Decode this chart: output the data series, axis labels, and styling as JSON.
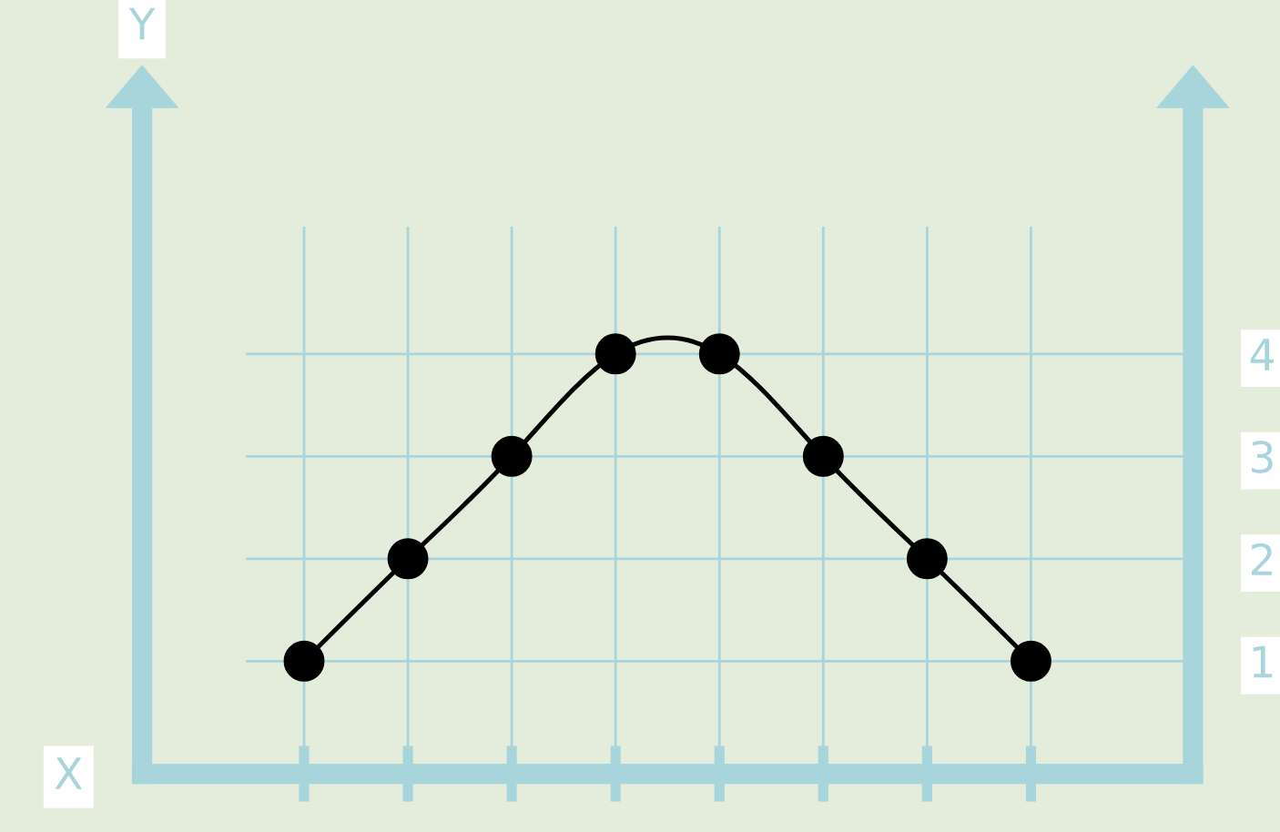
{
  "chart_data": {
    "type": "scatter",
    "xlabel": "X",
    "ylabel": "Y",
    "categories": [
      null,
      null,
      null,
      null,
      null,
      null,
      null,
      null
    ],
    "series": [
      {
        "type": "line",
        "color": "#000000",
        "line_style": "solid",
        "values": [
          1,
          2,
          3,
          4,
          4,
          3,
          2,
          1
        ]
      },
      {
        "color": "#000000",
        "marker": "circle",
        "values": [
          1,
          2,
          3,
          4,
          4,
          3,
          2,
          1
        ]
      }
    ],
    "ylim": [
      -0.1,
      6.4
    ],
    "yticks": [
      1,
      2,
      3,
      4
    ],
    "grid": true,
    "legend": false,
    "tick_labels": "y"
  }
}
